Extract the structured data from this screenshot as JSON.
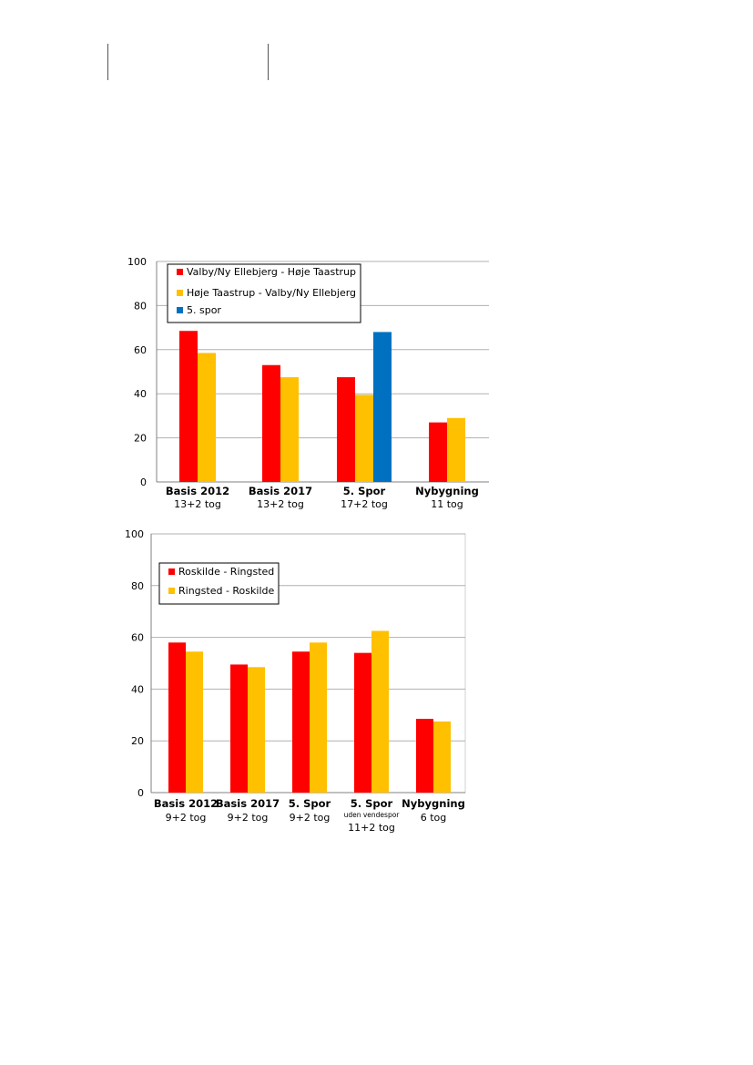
{
  "colors": {
    "red": "#ff0000",
    "orange": "#ffc000",
    "blue": "#0070c0",
    "grid": "#b0b0b0"
  },
  "chart_data": [
    {
      "type": "bar",
      "ylim": [
        0,
        100
      ],
      "yticks": [
        0,
        20,
        40,
        60,
        80,
        100
      ],
      "grid": true,
      "legend_position": "top-left",
      "categories": [
        "Basis 2012",
        "Basis 2017",
        "5. Spor",
        "Nybygning"
      ],
      "category_sublabels": [
        [
          "13+2 tog"
        ],
        [
          "13+2 tog"
        ],
        [
          "17+2 tog"
        ],
        [
          "11 tog"
        ]
      ],
      "series": [
        {
          "name": "Valby/Ny Ellebjerg - Høje Taastrup",
          "color": "#ff0000",
          "values": [
            68.5,
            53,
            47.5,
            27
          ]
        },
        {
          "name": "Høje Taastrup - Valby/Ny Ellebjerg",
          "color": "#ffc000",
          "values": [
            58.5,
            47.5,
            39.5,
            29
          ]
        },
        {
          "name": "5. spor",
          "color": "#0070c0",
          "values": [
            null,
            null,
            68,
            null
          ]
        }
      ]
    },
    {
      "type": "bar",
      "ylim": [
        0,
        100
      ],
      "yticks": [
        0,
        20,
        40,
        60,
        80,
        100
      ],
      "grid": true,
      "legend_position": "top-left",
      "categories": [
        "Basis 2012",
        "Basis 2017",
        "5. Spor",
        "5. Spor",
        "Nybygning"
      ],
      "category_sublabels": [
        [
          "9+2 tog"
        ],
        [
          "9+2 tog"
        ],
        [
          "9+2 tog"
        ],
        [
          "uden vendespor",
          "11+2 tog"
        ],
        [
          "6 tog"
        ]
      ],
      "series": [
        {
          "name": "Roskilde - Ringsted",
          "color": "#ff0000",
          "values": [
            58,
            49.5,
            54.5,
            54,
            28.5
          ]
        },
        {
          "name": "Ringsted - Roskilde",
          "color": "#ffc000",
          "values": [
            54.5,
            48.5,
            58,
            62.5,
            27.5
          ]
        }
      ]
    }
  ]
}
